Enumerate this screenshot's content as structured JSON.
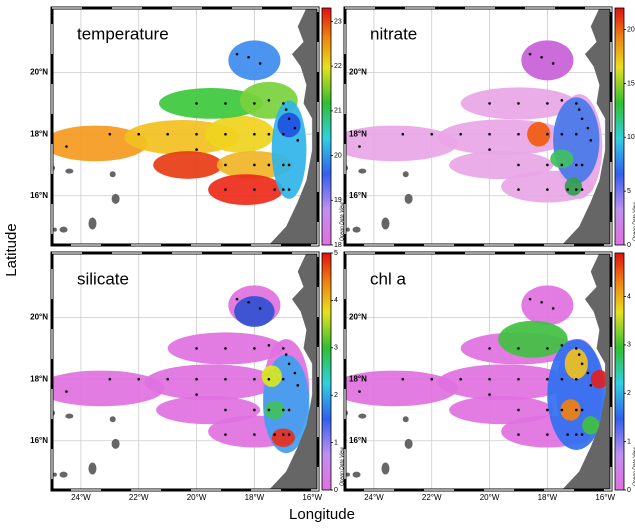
{
  "xlabel": "Longitude",
  "ylabel": "Latitude",
  "colorbar_credit": "Ocean Data View",
  "lon_lim": [
    -25,
    -15.8
  ],
  "lat_lim": [
    14.4,
    22.1
  ],
  "lon_ticks": [
    {
      "value": -24,
      "label": "24°W"
    },
    {
      "value": -22,
      "label": "22°W"
    },
    {
      "value": -20,
      "label": "20°W"
    },
    {
      "value": -18,
      "label": "18°W"
    },
    {
      "value": -16,
      "label": "16°W"
    }
  ],
  "lat_ticks": [
    {
      "value": 16,
      "label": "16°N"
    },
    {
      "value": 18,
      "label": "18°N"
    },
    {
      "value": 20,
      "label": "20°N"
    }
  ],
  "stations": {
    "lon": [
      -24.5,
      -23,
      -22,
      -21,
      -20,
      -19,
      -18,
      -17.5,
      -17,
      -20,
      -19,
      -18,
      -17.5,
      -17,
      -16.9,
      -16.8,
      -19,
      -18,
      -17.5,
      -17,
      -16.8,
      -19,
      -18,
      -17.3,
      -17,
      -16.8,
      -18.6,
      -18.2,
      -17.8,
      -20,
      -16.6,
      -16.5
    ],
    "lat": [
      17.6,
      18,
      18,
      18,
      18,
      18,
      18,
      18,
      18,
      19,
      19,
      19,
      19.1,
      19,
      18.8,
      18.5,
      17,
      17,
      17,
      17,
      17,
      16.2,
      16.2,
      16.2,
      16.2,
      16.2,
      20.6,
      20.5,
      20.3,
      17.5,
      18.2,
      17.8
    ]
  },
  "panels": [
    {
      "title": "temperature",
      "clim": [
        18,
        23.3
      ],
      "cticks": [
        18,
        19,
        20,
        21,
        22,
        23
      ]
    },
    {
      "title": "nitrate",
      "clim": [
        0,
        22
      ],
      "cticks": [
        0,
        5,
        10,
        15,
        20
      ]
    },
    {
      "title": "silicate",
      "clim": [
        0,
        5
      ],
      "cticks": [
        0,
        1,
        2,
        3,
        4,
        5
      ]
    },
    {
      "title": "chl a",
      "clim": [
        0,
        4.9
      ],
      "cticks": [
        0,
        1,
        2,
        3,
        4
      ]
    }
  ]
}
